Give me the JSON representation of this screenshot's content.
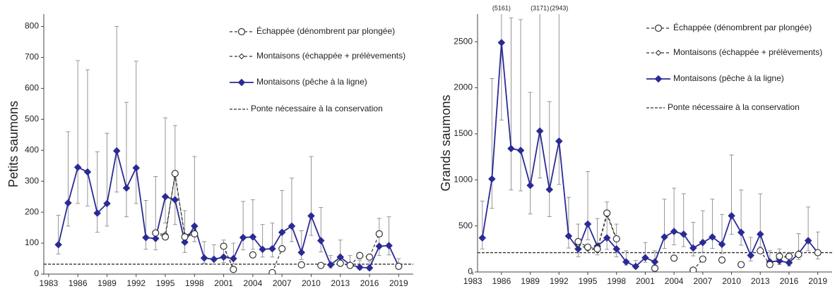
{
  "chart_data": [
    {
      "type": "line",
      "y_label": "Petits saumons",
      "xlim": [
        1982.5,
        2020.5
      ],
      "ylim": [
        0,
        840
      ],
      "xticks": [
        1983,
        1986,
        1989,
        1992,
        1995,
        1998,
        2001,
        2004,
        2007,
        2010,
        2013,
        2016,
        2019
      ],
      "yticks": [
        0,
        100,
        200,
        300,
        400,
        500,
        600,
        700,
        800
      ],
      "x": [
        1984,
        1985,
        1986,
        1987,
        1988,
        1989,
        1990,
        1991,
        1992,
        1993,
        1994,
        1995,
        1996,
        1997,
        1998,
        1999,
        2000,
        2001,
        2002,
        2003,
        2004,
        2005,
        2006,
        2007,
        2008,
        2009,
        2010,
        2011,
        2012,
        2013,
        2014,
        2015,
        2016,
        2017,
        2018,
        2019
      ],
      "series": [
        {
          "name": "Échappée (dénombrent par plongée)",
          "color": "#333333",
          "marker": "circle",
          "dashed": true,
          "values": [
            null,
            null,
            null,
            null,
            null,
            null,
            null,
            null,
            null,
            null,
            133,
            120,
            325,
            120,
            130,
            null,
            null,
            90,
            15,
            null,
            62,
            null,
            5,
            82,
            null,
            30,
            null,
            28,
            null,
            35,
            28,
            60,
            55,
            130,
            null,
            25
          ]
        },
        {
          "name": "Montaisons (échappée + prélèvements)",
          "color": "#333333",
          "marker": "open-diamond",
          "dashed": true,
          "values": [
            null,
            null,
            null,
            null,
            null,
            null,
            null,
            null,
            null,
            null,
            133,
            128,
            320,
            125,
            135,
            null,
            null,
            88,
            18,
            null,
            null,
            null,
            null,
            null,
            null,
            null,
            null,
            null,
            null,
            null,
            null,
            null,
            null,
            null,
            null,
            null
          ]
        },
        {
          "name": "Montaisons (pêche à la ligne)",
          "color": "#2a2a96",
          "marker": "diamond",
          "dashed": false,
          "values": [
            95,
            230,
            345,
            330,
            197,
            228,
            398,
            278,
            343,
            118,
            115,
            250,
            240,
            103,
            155,
            52,
            48,
            55,
            50,
            118,
            120,
            80,
            82,
            135,
            155,
            70,
            188,
            108,
            30,
            55,
            30,
            22,
            20,
            90,
            92,
            25
          ],
          "low": [
            65,
            155,
            228,
            220,
            135,
            155,
            265,
            185,
            228,
            80,
            78,
            165,
            160,
            70,
            105,
            35,
            32,
            37,
            33,
            78,
            80,
            55,
            55,
            90,
            105,
            47,
            125,
            72,
            20,
            37,
            20,
            15,
            13,
            60,
            62,
            17
          ],
          "high": [
            190,
            460,
            690,
            660,
            395,
            455,
            800,
            555,
            688,
            238,
            315,
            505,
            480,
            205,
            380,
            105,
            95,
            110,
            100,
            235,
            240,
            160,
            165,
            270,
            310,
            140,
            380,
            215,
            60,
            110,
            60,
            45,
            40,
            180,
            185,
            50
          ]
        }
      ],
      "reference_line": {
        "name": "Ponte nécessaire à la conservation",
        "value": 32,
        "color": "#333333"
      }
    },
    {
      "type": "line",
      "y_label": "Grands saumons",
      "xlim": [
        1983.5,
        2020.5
      ],
      "ylim": [
        0,
        2800
      ],
      "xticks": [
        1983,
        1986,
        1989,
        1992,
        1995,
        1998,
        2001,
        2004,
        2007,
        2010,
        2013,
        2016,
        2019
      ],
      "yticks": [
        0,
        500,
        1000,
        1500,
        2000,
        2500
      ],
      "x": [
        1984,
        1985,
        1986,
        1987,
        1988,
        1989,
        1990,
        1991,
        1992,
        1993,
        1994,
        1995,
        1996,
        1997,
        1998,
        1999,
        2000,
        2001,
        2002,
        2003,
        2004,
        2005,
        2006,
        2007,
        2008,
        2009,
        2010,
        2011,
        2012,
        2013,
        2014,
        2015,
        2016,
        2017,
        2018,
        2019
      ],
      "series": [
        {
          "name": "Échappée (dénombrent par plongée)",
          "color": "#333333",
          "marker": "circle",
          "dashed": true,
          "values": [
            null,
            null,
            null,
            null,
            null,
            null,
            null,
            null,
            null,
            null,
            330,
            270,
            250,
            640,
            360,
            null,
            null,
            null,
            40,
            null,
            150,
            null,
            20,
            140,
            null,
            130,
            null,
            80,
            null,
            230,
            80,
            170,
            170,
            190,
            null,
            210
          ]
        },
        {
          "name": "Montaisons (échappée + prélèvements)",
          "color": "#333333",
          "marker": "open-diamond",
          "dashed": true,
          "values": [
            null,
            null,
            null,
            null,
            null,
            null,
            null,
            null,
            null,
            null,
            300,
            250,
            240,
            620,
            350,
            null,
            null,
            null,
            null,
            null,
            null,
            null,
            null,
            null,
            null,
            null,
            null,
            null,
            null,
            null,
            null,
            160,
            160,
            null,
            null,
            null
          ]
        },
        {
          "name": "Montaisons (pêche à la ligne)",
          "color": "#2a2a96",
          "marker": "diamond",
          "dashed": false,
          "values": [
            370,
            1010,
            2490,
            1340,
            1320,
            940,
            1530,
            895,
            1420,
            390,
            250,
            520,
            280,
            370,
            250,
            110,
            60,
            155,
            110,
            380,
            440,
            410,
            260,
            320,
            380,
            300,
            610,
            430,
            180,
            410,
            110,
            120,
            100,
            200,
            340,
            210
          ],
          "low": [
            250,
            690,
            1650,
            890,
            880,
            630,
            1020,
            600,
            950,
            260,
            165,
            350,
            185,
            245,
            165,
            75,
            40,
            105,
            75,
            255,
            295,
            275,
            175,
            215,
            255,
            200,
            410,
            290,
            120,
            275,
            75,
            80,
            65,
            135,
            230,
            140
          ],
          "high": [
            770,
            2100,
            5161,
            2760,
            2740,
            1950,
            3171,
            1850,
            2943,
            810,
            520,
            1090,
            580,
            760,
            520,
            230,
            125,
            320,
            230,
            790,
            910,
            850,
            540,
            665,
            790,
            625,
            1270,
            890,
            375,
            850,
            230,
            250,
            210,
            415,
            705,
            435
          ]
        }
      ],
      "reference_line": {
        "name": "Ponte nécessaire à la conservation",
        "value": 210,
        "color": "#333333"
      },
      "annotations": [
        {
          "x": 1986,
          "text": "(5161)"
        },
        {
          "x": 1990,
          "text": "(3171)"
        },
        {
          "x": 1992,
          "text": "(2943)"
        }
      ]
    }
  ]
}
